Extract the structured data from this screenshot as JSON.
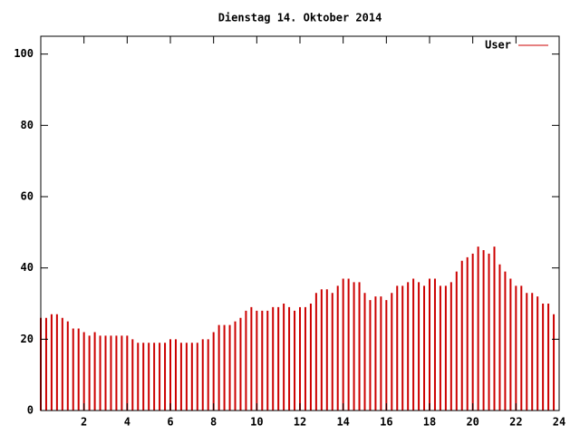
{
  "chart_data": {
    "type": "impulses",
    "title": "Dienstag 14. Oktober 2014",
    "x": [
      0,
      0.25,
      0.5,
      0.75,
      1,
      1.25,
      1.5,
      1.75,
      2,
      2.25,
      2.5,
      2.75,
      3,
      3.25,
      3.5,
      3.75,
      4,
      4.25,
      4.5,
      4.75,
      5,
      5.25,
      5.5,
      5.75,
      6,
      6.25,
      6.5,
      6.75,
      7,
      7.25,
      7.5,
      7.75,
      8,
      8.25,
      8.5,
      8.75,
      9,
      9.25,
      9.5,
      9.75,
      10,
      10.25,
      10.5,
      10.75,
      11,
      11.25,
      11.5,
      11.75,
      12,
      12.25,
      12.5,
      12.75,
      13,
      13.25,
      13.5,
      13.75,
      14,
      14.25,
      14.5,
      14.75,
      15,
      15.25,
      15.5,
      15.75,
      16,
      16.25,
      16.5,
      16.75,
      17,
      17.25,
      17.5,
      17.75,
      18,
      18.25,
      18.5,
      18.75,
      19,
      19.25,
      19.5,
      19.75,
      20,
      20.25,
      20.5,
      20.75,
      21,
      21.25,
      21.5,
      21.75,
      22,
      22.25,
      22.5,
      22.75,
      23,
      23.25,
      23.5,
      23.75
    ],
    "series": [
      {
        "name": "User",
        "color": "#cc0000",
        "values": [
          26,
          26,
          27,
          27,
          26,
          25,
          23,
          23,
          22,
          21,
          22,
          21,
          21,
          21,
          21,
          21,
          21,
          20,
          19,
          19,
          19,
          19,
          19,
          19,
          20,
          20,
          19,
          19,
          19,
          19,
          20,
          20,
          22,
          24,
          24,
          24,
          25,
          26,
          28,
          29,
          28,
          28,
          28,
          29,
          29,
          30,
          29,
          28,
          29,
          29,
          30,
          33,
          34,
          34,
          33,
          35,
          37,
          37,
          36,
          36,
          33,
          31,
          32,
          32,
          31,
          33,
          35,
          35,
          36,
          37,
          36,
          35,
          37,
          37,
          35,
          35,
          36,
          39,
          42,
          43,
          44,
          46,
          45,
          44,
          46,
          41,
          39,
          37,
          35,
          35,
          33,
          33,
          32,
          30,
          30,
          27
        ]
      }
    ],
    "xlim": [
      0,
      24
    ],
    "xticks": [
      2,
      4,
      6,
      8,
      10,
      12,
      14,
      16,
      18,
      20,
      22,
      24
    ],
    "ylim": [
      0,
      105
    ],
    "yticks": [
      0,
      20,
      40,
      60,
      80,
      100
    ],
    "legend": "top-right"
  }
}
